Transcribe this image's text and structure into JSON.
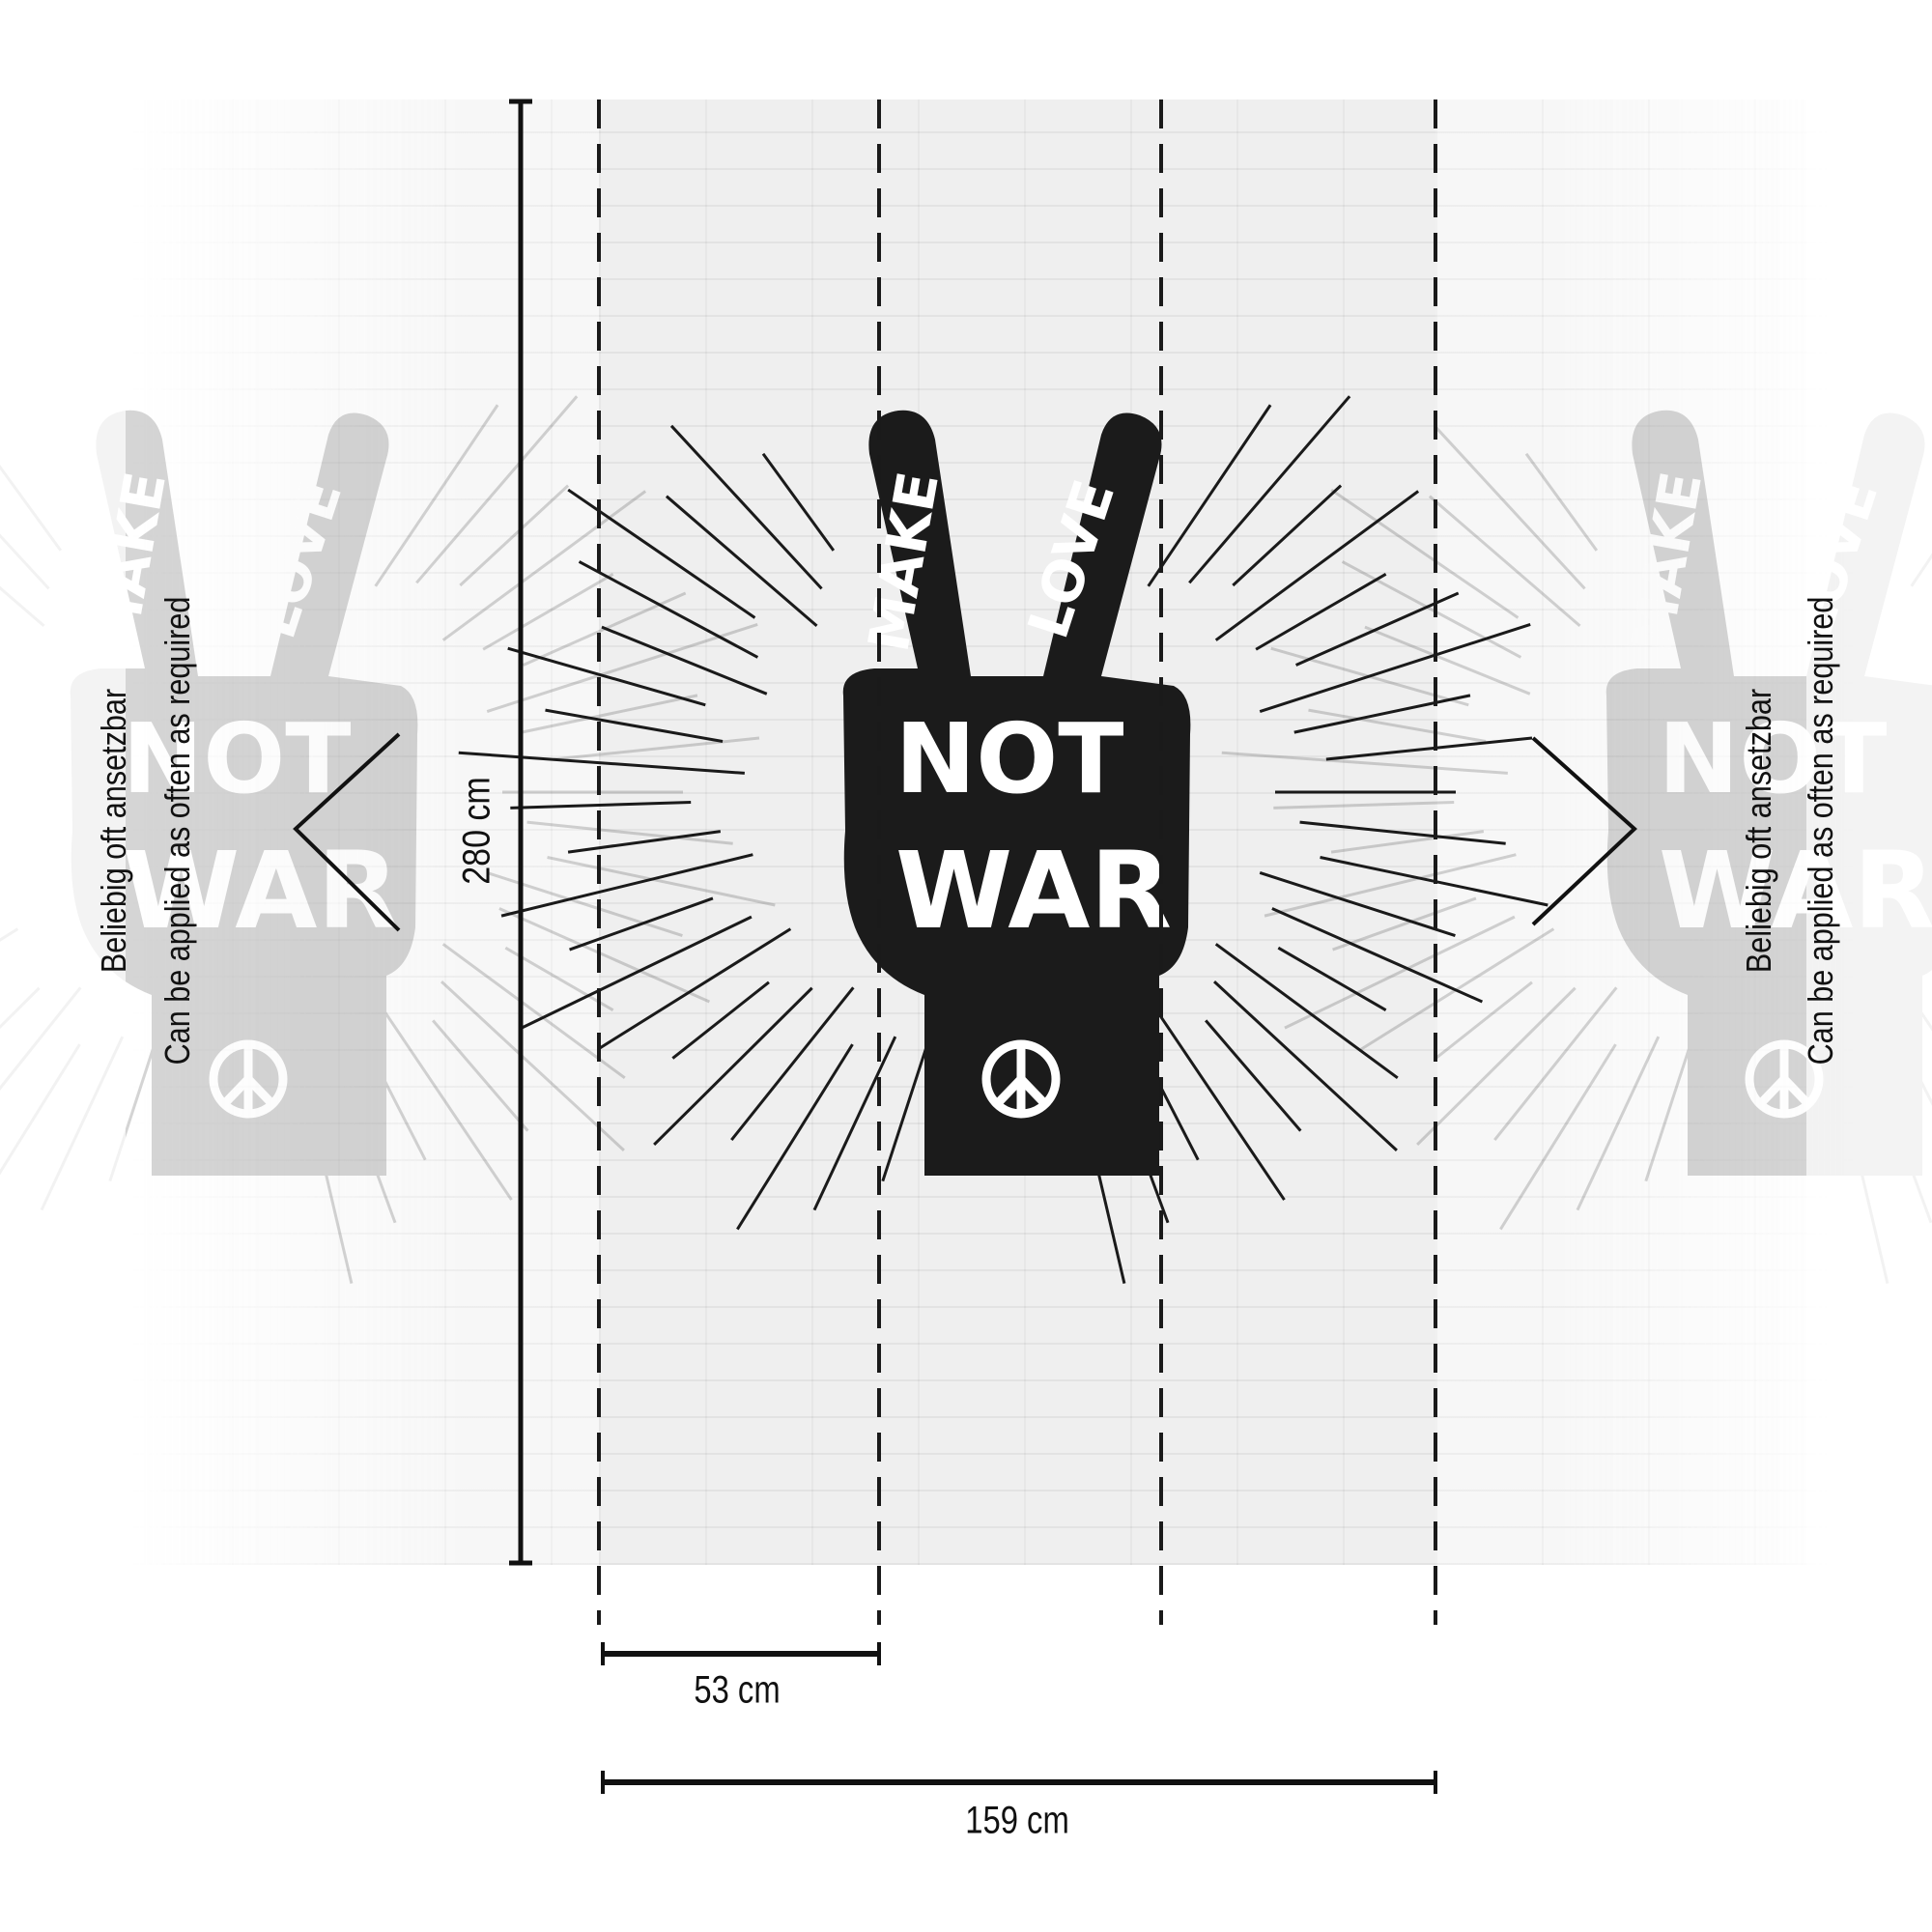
{
  "artwork": {
    "finger_left_text": "MAKE",
    "finger_right_text": "LOVE",
    "line1": "NOT",
    "line2": "WAR",
    "symbol": "peace-symbol"
  },
  "dimensions": {
    "height_label": "280 cm",
    "panel_width_label": "53 cm",
    "total_width_label": "159 cm",
    "panel_count": 3
  },
  "repeat_note": {
    "german": "Beliebig oft ansetzbar",
    "english": "Can be applied as often as required"
  },
  "colors": {
    "ink": "#1a1a1a",
    "wall": "#efefef"
  }
}
